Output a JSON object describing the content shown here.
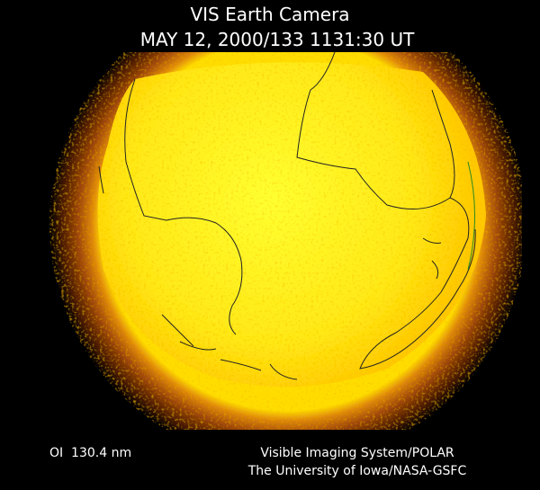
{
  "header": {
    "title": "VIS Earth Camera",
    "timestamp": "MAY 12, 2000/133 1131:30 UT"
  },
  "footer": {
    "wavelength": "OI  130.4 nm",
    "instrument": "Visible Imaging System/POLAR",
    "institution": "The University of Iowa/NASA-GSFC"
  }
}
